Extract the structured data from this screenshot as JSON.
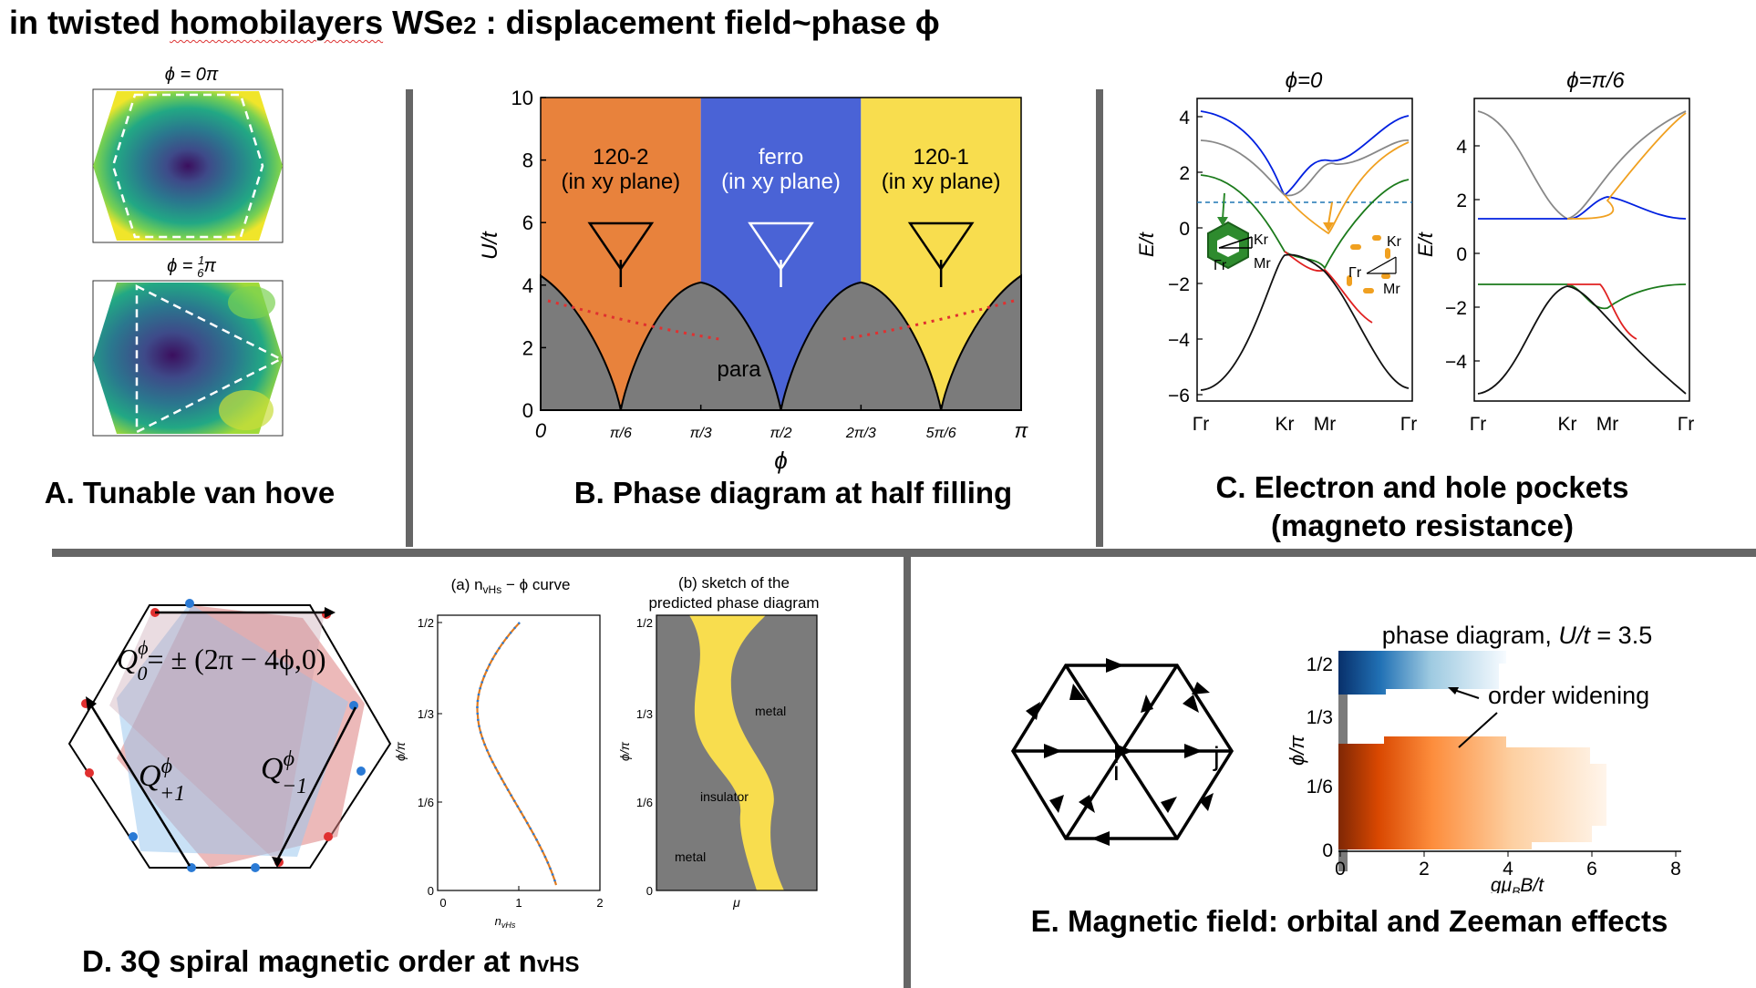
{
  "title": {
    "pre": "in twisted ",
    "underlined": "homobilayers",
    "mid": " WSe",
    "sub": "2",
    "post": " : displacement field~phase ϕ"
  },
  "captions": {
    "A": "A. Tunable van hove",
    "B": "B. Phase diagram at half filling",
    "C1": "C. Electron and hole pockets",
    "C2": "(magneto resistance)",
    "D_pre": "D. 3Q spiral magnetic order at n",
    "D_sub": "vHS",
    "E": "E. Magnetic field: orbital and Zeeman effects"
  },
  "panelA": {
    "top_label": "ϕ = 0π",
    "bottom_label_pre": "ϕ = ",
    "bottom_label_num": "1",
    "bottom_label_den": "6",
    "bottom_label_post": "π"
  },
  "panelB": {
    "ylabel": "U/t",
    "xlabel": "ϕ",
    "yticks": [
      "0",
      "2",
      "4",
      "6",
      "8",
      "10"
    ],
    "xticks": [
      "0",
      "π/6",
      "π/3",
      "π/2",
      "2π/3",
      "5π/6",
      "π"
    ],
    "phases": [
      {
        "name": "120-2",
        "sub": "(in xy plane)",
        "color": "#e8823c"
      },
      {
        "name": "ferro",
        "sub": "(in xy plane)",
        "color": "#4a63d6"
      },
      {
        "name": "120-1",
        "sub": "(in xy plane)",
        "color": "#f8dd4e"
      }
    ],
    "para_label": "para",
    "para_color": "#7b7b7b"
  },
  "panelC": {
    "left_title": "ϕ=0",
    "right_title": "ϕ=π/6",
    "ylabel": "E/t",
    "left_yticks": [
      "4",
      "2",
      "0",
      "−2",
      "−4",
      "−6"
    ],
    "right_yticks": [
      "4",
      "2",
      "0",
      "−2",
      "−4"
    ],
    "xticks": [
      "Γr",
      "Kr",
      "Mr",
      "Γr"
    ],
    "bz_labels": {
      "K": "Kr",
      "G": "Γr",
      "M": "Mr"
    }
  },
  "panelD": {
    "q0_label": "Q",
    "q0_sup": "ϕ",
    "q0_sub": "0",
    "q0_rhs": "= ± (2π − 4ϕ,0)",
    "qp1_label": "Q",
    "qp1_sub": "+1",
    "qm1_label": "Q",
    "qm1_sub": "−1",
    "curve_title_pre": "(a) n",
    "curve_title_sub": "vHs",
    "curve_title_post": " − ϕ curve",
    "curve_yticks": [
      "1/2",
      "1/3",
      "1/6",
      "0"
    ],
    "curve_xticks": [
      "0",
      "1",
      "2"
    ],
    "curve_xlabel_pre": "n",
    "curve_xlabel_sub": "vHs",
    "curve_ylabel": "ϕ/π",
    "sketch_title1": "(b) sketch of the",
    "sketch_title2": "predicted phase diagram",
    "sketch_yticks": [
      "1/2",
      "1/3",
      "1/6",
      "0"
    ],
    "sketch_ylabel": "ϕ/π",
    "sketch_xlabel": "μ",
    "sketch_labels": {
      "metal_top": "metal",
      "insulator": "insulator",
      "metal_bottom": "metal"
    }
  },
  "panelE": {
    "lattice_i": "i",
    "lattice_j": "j",
    "title_pre": "phase diagram, ",
    "title_italic": "U/t",
    "title_post": " = 3.5",
    "yticks": [
      "1/2",
      "1/3",
      "1/6",
      "0"
    ],
    "xticks": [
      "0",
      "2",
      "4",
      "6",
      "8"
    ],
    "ylabel": "ϕ/π",
    "xlabel": "gμ",
    "xlabel_sub": "B",
    "xlabel_post": "B/t",
    "annotation": "order widening"
  }
}
